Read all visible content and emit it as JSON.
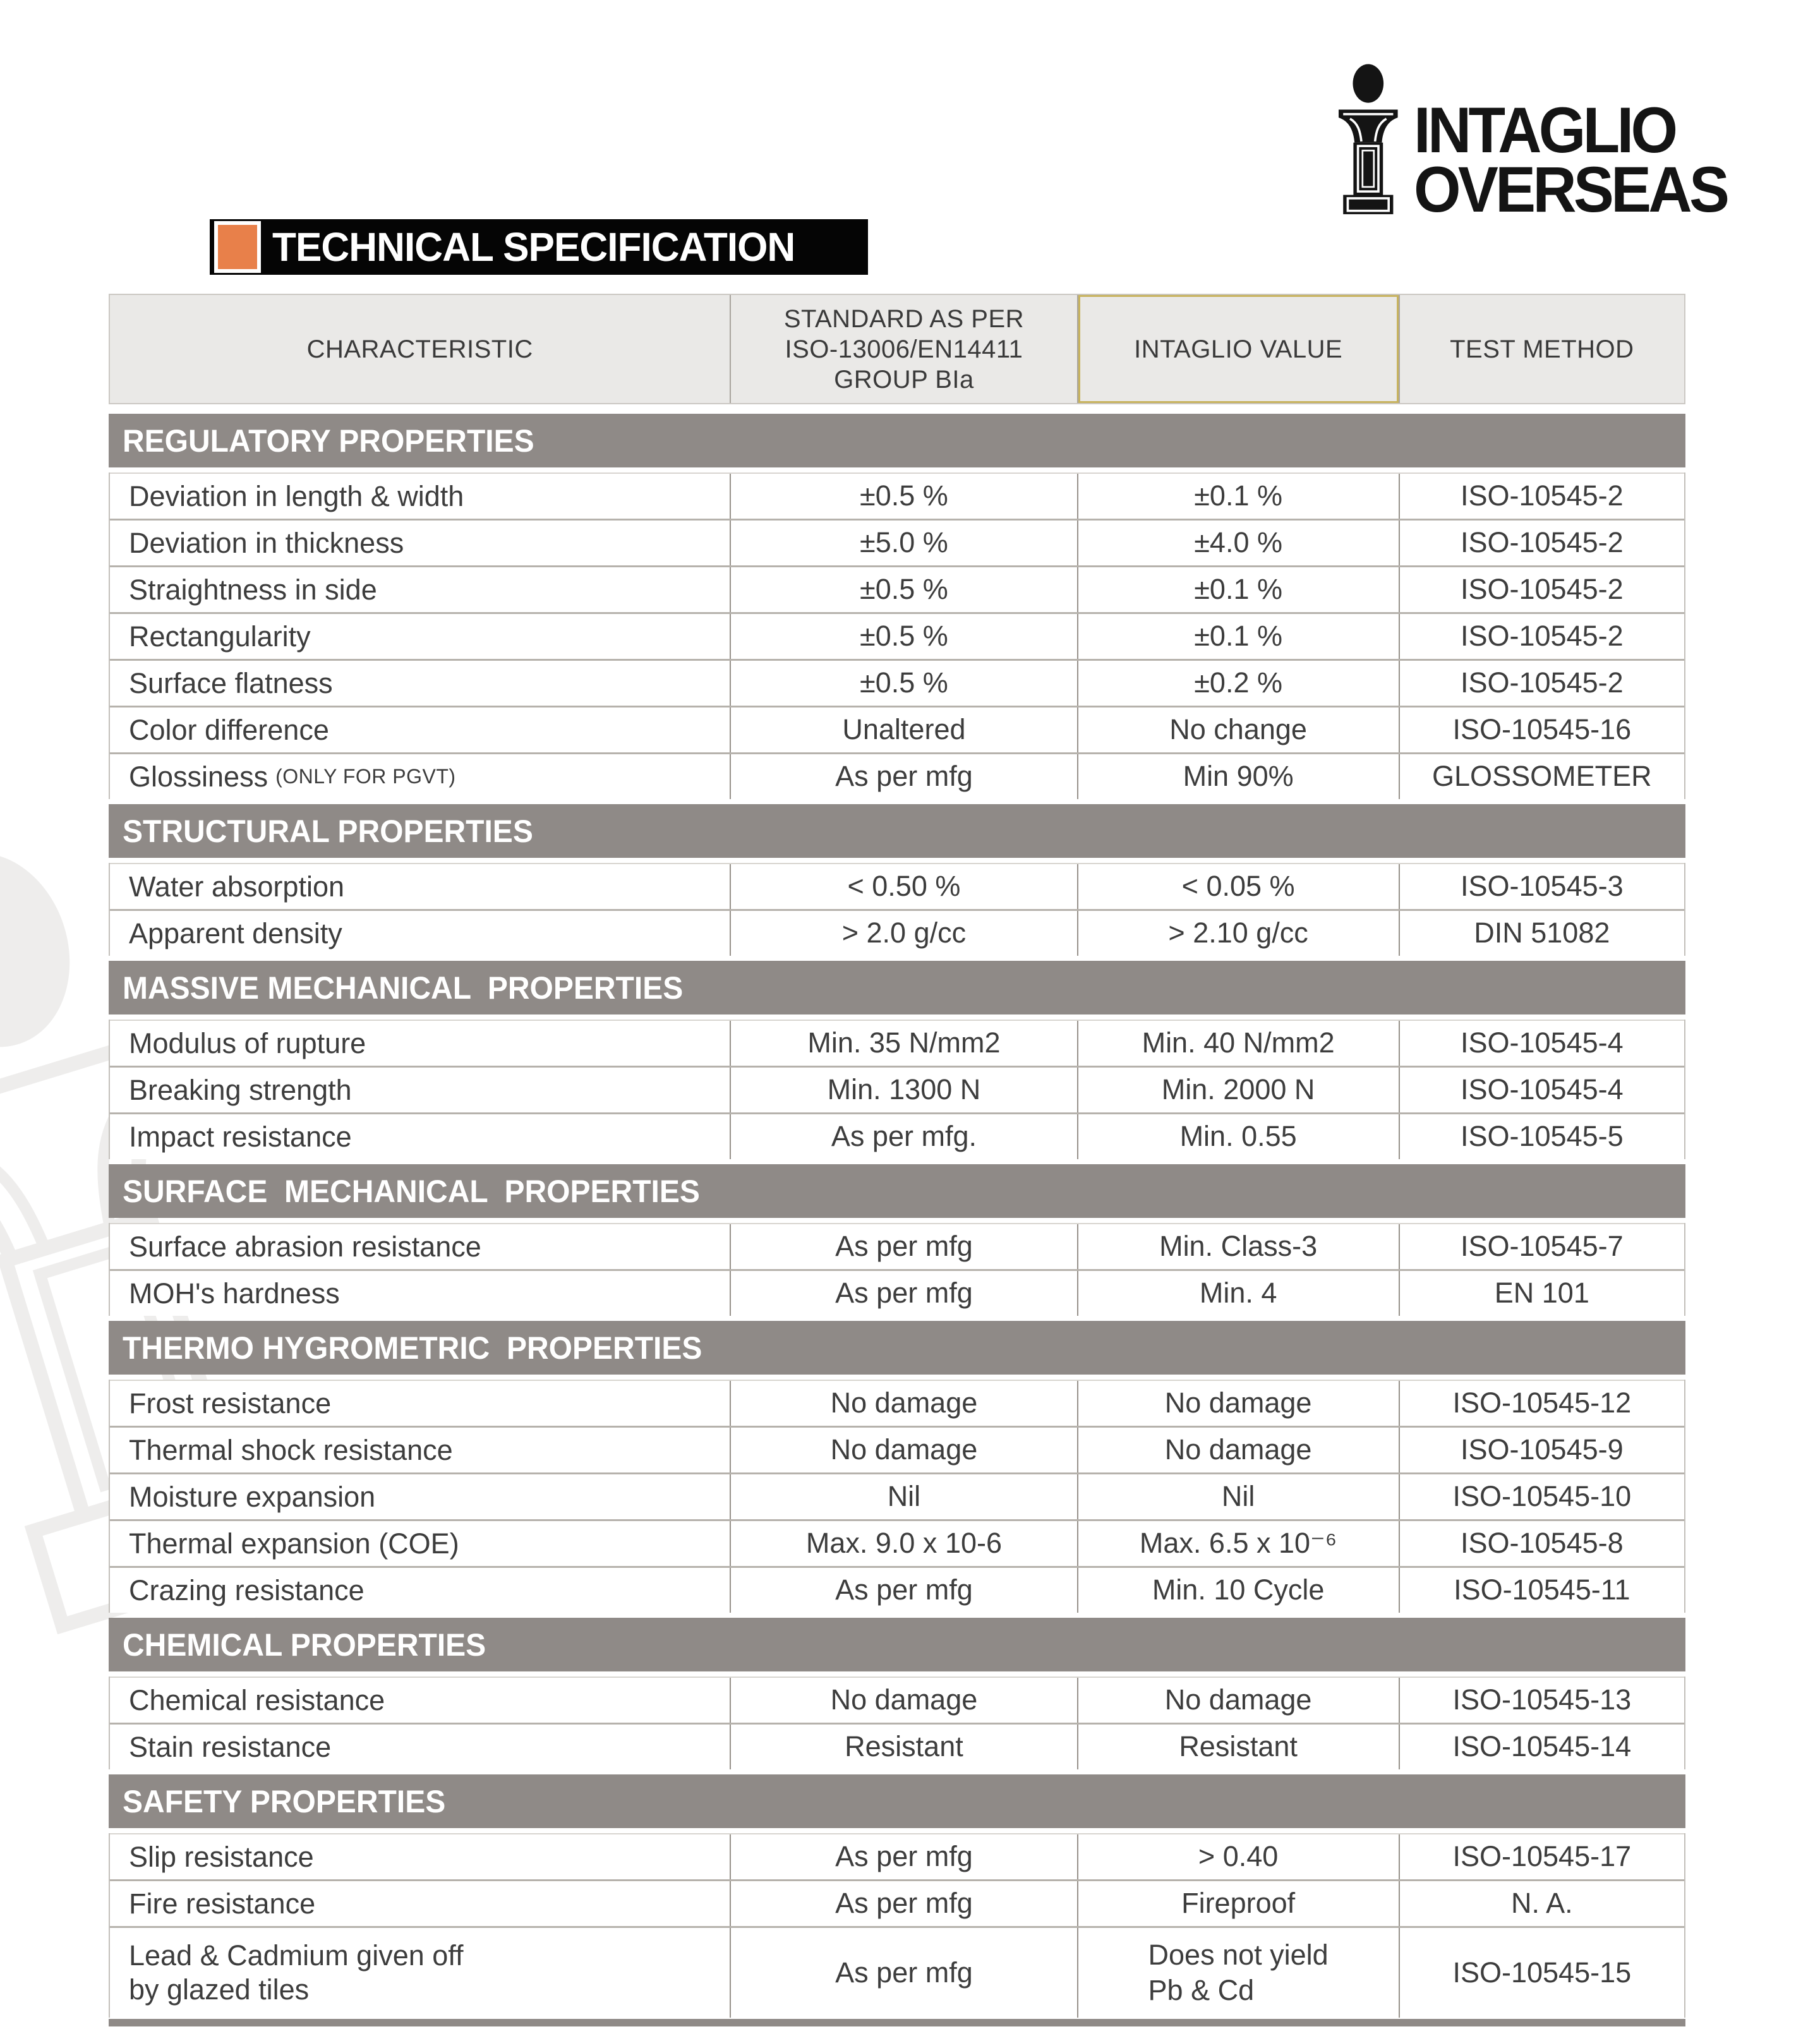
{
  "logo": {
    "icon": "pillar-i-icon",
    "name_line1": "INTAGLIO",
    "name_line2": "OVERSEAS"
  },
  "header": {
    "title": "TECHNICAL SPECIFICATION"
  },
  "colors": {
    "accent_orange": "#E8804A",
    "title_bar_black": "#050505",
    "section_band_gray": "#8F8A87",
    "header_cell_gray": "#EAE9E7",
    "intaglio_header_outline": "#C8B35E",
    "logo_black": "#141414",
    "watermark_gray": "#EEEDEC"
  },
  "table": {
    "columns": [
      {
        "label": "CHARACTERISTIC"
      },
      {
        "label": "STANDARD AS PER\nISO-13006/EN14411\nGROUP BIa"
      },
      {
        "label": "INTAGLIO VALUE"
      },
      {
        "label": "TEST METHOD"
      }
    ],
    "sections": [
      {
        "title": "REGULATORY PROPERTIES",
        "rows": [
          {
            "characteristic": "Deviation in length & width",
            "standard": "±0.5 %",
            "intaglio": "±0.1 %",
            "method": "ISO-10545-2"
          },
          {
            "characteristic": "Deviation in thickness",
            "standard": "±5.0 %",
            "intaglio": "±4.0 %",
            "method": "ISO-10545-2"
          },
          {
            "characteristic": "Straightness in side",
            "standard": "±0.5 %",
            "intaglio": "±0.1 %",
            "method": "ISO-10545-2"
          },
          {
            "characteristic": "Rectangularity",
            "standard": "±0.5 %",
            "intaglio": "±0.1 %",
            "method": "ISO-10545-2"
          },
          {
            "characteristic": "Surface flatness",
            "standard": "±0.5 %",
            "intaglio": "±0.2 %",
            "method": "ISO-10545-2"
          },
          {
            "characteristic": "Color difference",
            "standard": "Unaltered",
            "intaglio": "No change",
            "method": "ISO-10545-16"
          },
          {
            "characteristic": "Glossiness",
            "characteristic_note": "(ONLY FOR PGVT)",
            "standard": "As per mfg",
            "intaglio": "Min 90%",
            "method": "GLOSSOMETER"
          }
        ]
      },
      {
        "title": "STRUCTURAL PROPERTIES",
        "rows": [
          {
            "characteristic": "Water absorption",
            "standard": "< 0.50 %",
            "intaglio": "< 0.05 %",
            "method": "ISO-10545-3"
          },
          {
            "characteristic": "Apparent density",
            "standard": "> 2.0 g/cc",
            "intaglio": "> 2.10 g/cc",
            "method": "DIN 51082"
          }
        ]
      },
      {
        "title": "MASSIVE MECHANICAL  PROPERTIES",
        "rows": [
          {
            "characteristic": "Modulus of rupture",
            "standard": "Min. 35 N/mm2",
            "intaglio": "Min. 40 N/mm2",
            "method": "ISO-10545-4"
          },
          {
            "characteristic": "Breaking strength",
            "standard": "Min. 1300 N",
            "intaglio": "Min. 2000 N",
            "method": "ISO-10545-4"
          },
          {
            "characteristic": "Impact resistance",
            "standard": "As per mfg.",
            "intaglio": "Min. 0.55",
            "method": "ISO-10545-5"
          }
        ]
      },
      {
        "title": "SURFACE  MECHANICAL  PROPERTIES",
        "rows": [
          {
            "characteristic": "Surface abrasion resistance",
            "standard": "As per mfg",
            "intaglio": "Min. Class-3",
            "method": "ISO-10545-7"
          },
          {
            "characteristic": "MOH's hardness",
            "standard": "As per mfg",
            "intaglio": "Min. 4",
            "method": "EN 101"
          }
        ]
      },
      {
        "title": "THERMO HYGROMETRIC  PROPERTIES",
        "rows": [
          {
            "characteristic": "Frost resistance",
            "standard": "No damage",
            "intaglio": "No damage",
            "method": "ISO-10545-12"
          },
          {
            "characteristic": "Thermal shock resistance",
            "standard": "No damage",
            "intaglio": "No damage",
            "method": "ISO-10545-9"
          },
          {
            "characteristic": "Moisture expansion",
            "standard": "Nil",
            "intaglio": "Nil",
            "method": "ISO-10545-10"
          },
          {
            "characteristic": "Thermal expansion (COE)",
            "standard": "Max. 9.0 x 10-6",
            "intaglio": "Max. 6.5 x 10⁻⁶",
            "method": "ISO-10545-8"
          },
          {
            "characteristic": "Crazing resistance",
            "standard": "As per mfg",
            "intaglio": "Min. 10 Cycle",
            "method": "ISO-10545-11"
          }
        ]
      },
      {
        "title": "CHEMICAL PROPERTIES",
        "rows": [
          {
            "characteristic": "Chemical resistance",
            "standard": "No damage",
            "intaglio": "No damage",
            "method": "ISO-10545-13"
          },
          {
            "characteristic": "Stain resistance",
            "standard": "Resistant",
            "intaglio": "Resistant",
            "method": "ISO-10545-14"
          }
        ]
      },
      {
        "title": "SAFETY PROPERTIES",
        "rows": [
          {
            "characteristic": "Slip resistance",
            "standard": "As per mfg",
            "intaglio": "> 0.40",
            "method": "ISO-10545-17"
          },
          {
            "characteristic": "Fire resistance",
            "standard": "As per mfg",
            "intaglio": "Fireproof",
            "method": "N. A."
          },
          {
            "characteristic": "Lead & Cadmium given off\nby glazed tiles",
            "standard": "As per mfg",
            "intaglio": "Does not yield\nPb & Cd",
            "method": "ISO-10545-15"
          }
        ]
      }
    ]
  }
}
